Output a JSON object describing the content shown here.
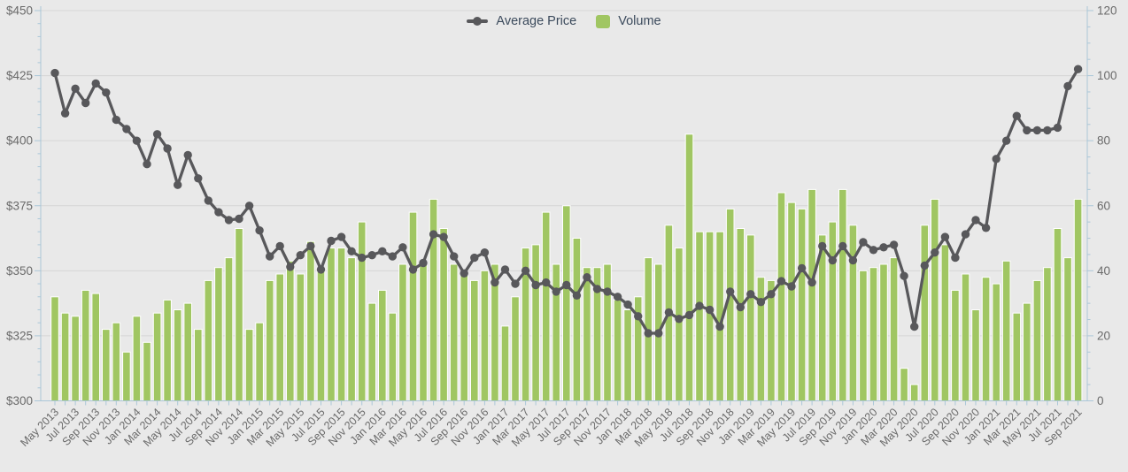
{
  "colors": {
    "background": "#e9e9e9",
    "grid": "#d6d6d6",
    "axis": "#abc7d8",
    "tick_label": "#6a6a6a",
    "legend_text": "#3b4a5c",
    "price_line": "#58585b",
    "volume_fill": "#a0c662",
    "volume_stroke": "#ffffff"
  },
  "legend": {
    "price_label": "Average Price",
    "volume_label": "Volume"
  },
  "y_axis_left": {
    "tick_labels": [
      "$450",
      "$425",
      "$400",
      "$375",
      "$350",
      "$325",
      "$300"
    ],
    "min": 300,
    "max": 450,
    "step": 25
  },
  "y_axis_right": {
    "tick_labels": [
      "120",
      "100",
      "80",
      "60",
      "40",
      "20",
      "0"
    ],
    "min": 0,
    "max": 120,
    "step": 20
  },
  "chart_data": {
    "type": "combo",
    "x_label_every": 2,
    "x": [
      "May 2013",
      "Jun 2013",
      "Jul 2013",
      "Aug 2013",
      "Sep 2013",
      "Oct 2013",
      "Nov 2013",
      "Dec 2013",
      "Jan 2014",
      "Feb 2014",
      "Mar 2014",
      "Apr 2014",
      "May 2014",
      "Jun 2014",
      "Jul 2014",
      "Aug 2014",
      "Sep 2014",
      "Oct 2014",
      "Nov 2014",
      "Dec 2014",
      "Jan 2015",
      "Feb 2015",
      "Mar 2015",
      "Apr 2015",
      "May 2015",
      "Jun 2015",
      "Jul 2015",
      "Aug 2015",
      "Sep 2015",
      "Oct 2015",
      "Nov 2015",
      "Dec 2015",
      "Jan 2016",
      "Feb 2016",
      "Mar 2016",
      "Apr 2016",
      "May 2016",
      "Jun 2016",
      "Jul 2016",
      "Aug 2016",
      "Sep 2016",
      "Oct 2016",
      "Nov 2016",
      "Dec 2016",
      "Jan 2017",
      "Feb 2017",
      "Mar 2017",
      "Apr 2017",
      "May 2017",
      "Jun 2017",
      "Jul 2017",
      "Aug 2017",
      "Sep 2017",
      "Oct 2017",
      "Nov 2017",
      "Dec 2017",
      "Jan 2018",
      "Feb 2018",
      "Mar 2018",
      "Apr 2018",
      "May 2018",
      "Jun 2018",
      "Jul 2018",
      "Aug 2018",
      "Sep 2018",
      "Oct 2018",
      "Nov 2018",
      "Dec 2018",
      "Jan 2019",
      "Feb 2019",
      "Mar 2019",
      "Apr 2019",
      "May 2019",
      "Jun 2019",
      "Jul 2019",
      "Aug 2019",
      "Sep 2019",
      "Oct 2019",
      "Nov 2019",
      "Dec 2019",
      "Jan 2020",
      "Feb 2020",
      "Mar 2020",
      "Apr 2020",
      "May 2020",
      "Jun 2020",
      "Jul 2020",
      "Aug 2020",
      "Sep 2020",
      "Oct 2020",
      "Nov 2020",
      "Dec 2020",
      "Jan 2021",
      "Feb 2021",
      "Mar 2021",
      "Apr 2021",
      "May 2021",
      "Jun 2021",
      "Jul 2021",
      "Aug 2021",
      "Sep 2021"
    ],
    "series": [
      {
        "name": "Average Price",
        "type": "line",
        "axis": "left",
        "values": [
          426,
          410.5,
          420,
          414.5,
          422,
          418.5,
          408,
          404.5,
          400,
          391,
          402.5,
          397,
          383,
          394.5,
          385.5,
          377,
          372.5,
          369.5,
          370,
          375,
          365.5,
          355.5,
          359.5,
          351.5,
          356,
          359.5,
          350.5,
          361.5,
          363,
          357.5,
          355,
          356,
          357.5,
          355.5,
          359,
          350.5,
          353,
          364,
          363,
          355.5,
          349,
          355,
          357,
          345.5,
          350.5,
          345,
          350,
          344.5,
          345.5,
          342,
          344.5,
          340.5,
          347.5,
          343,
          342,
          340,
          337,
          332.5,
          326,
          326,
          334,
          331.5,
          333,
          336.5,
          335,
          328.5,
          342,
          336,
          341,
          338,
          341,
          346,
          344,
          351,
          345.5,
          359.5,
          354,
          359.5,
          354,
          361,
          358,
          359,
          360,
          348,
          328.5,
          352,
          357,
          363,
          355,
          364,
          369.5,
          366.5,
          393,
          400,
          409.5,
          404,
          404,
          404,
          405,
          421,
          427.5
        ]
      },
      {
        "name": "Volume",
        "type": "bar",
        "axis": "right",
        "values": [
          32,
          27,
          26,
          34,
          33,
          22,
          24,
          15,
          26,
          18,
          27,
          31,
          28,
          30,
          22,
          37,
          41,
          44,
          53,
          22,
          24,
          37,
          39,
          43,
          39,
          49,
          41,
          47,
          47,
          44,
          55,
          30,
          34,
          27,
          42,
          58,
          42,
          62,
          53,
          42,
          39,
          37,
          40,
          42,
          23,
          32,
          47,
          48,
          58,
          42,
          60,
          50,
          41,
          41,
          42,
          31,
          28,
          32,
          44,
          42,
          54,
          47,
          82,
          52,
          52,
          52,
          59,
          53,
          51,
          38,
          37,
          64,
          61,
          59,
          65,
          51,
          55,
          65,
          54,
          40,
          41,
          42,
          44,
          10,
          5,
          54,
          62,
          48,
          34,
          39,
          28,
          38,
          36,
          43,
          27,
          30,
          37,
          41,
          53,
          44,
          62
        ]
      }
    ]
  }
}
